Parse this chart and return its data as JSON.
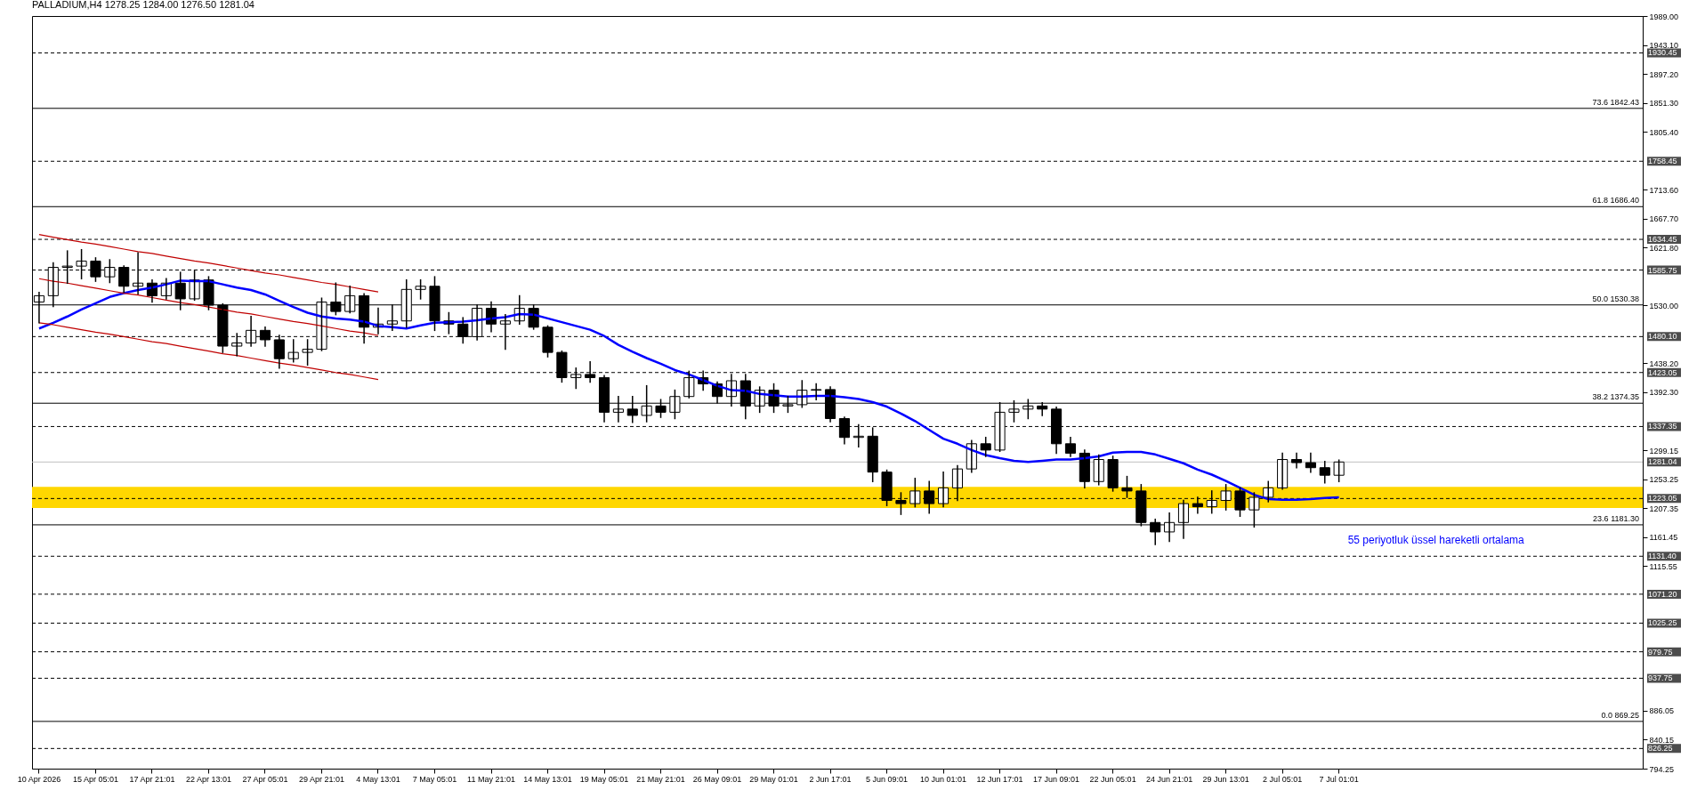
{
  "chart_data": {
    "type": "candlestick",
    "title": "PALLADIUM,H4 1278.25 1284.00 1276.50 1281.04",
    "categories": [
      "10 Apr 2026",
      null,
      null,
      null,
      "15 Apr 05:01",
      null,
      null,
      null,
      "17 Apr 21:01",
      null,
      null,
      null,
      "22 Apr 13:01",
      null,
      null,
      null,
      "27 Apr 05:01",
      null,
      null,
      null,
      "29 Apr 21:01",
      null,
      null,
      null,
      "4 May 13:01",
      null,
      null,
      null,
      "7 May 05:01",
      null,
      null,
      null,
      "11 May 21:01",
      null,
      null,
      null,
      "14 May 13:01",
      null,
      null,
      null,
      "19 May 05:01",
      null,
      null,
      null,
      "21 May 21:01",
      null,
      null,
      null,
      "26 May 09:01",
      null,
      null,
      null,
      "29 May 01:01",
      null,
      null,
      null,
      "2 Jun 17:01",
      null,
      null,
      null,
      "5 Jun 09:01",
      null,
      null,
      null,
      "10 Jun 01:01",
      null,
      null,
      null,
      "12 Jun 17:01",
      null,
      null,
      null,
      "17 Jun 09:01",
      null,
      null,
      null,
      "22 Jun 05:01",
      null,
      null,
      null,
      "24 Jun 21:01",
      null,
      null,
      null,
      "29 Jun 13:01",
      null,
      null,
      null,
      "2 Jul 05:01",
      null,
      null,
      null,
      "7 Jul 01:01",
      null,
      null,
      null,
      null,
      null,
      null,
      null,
      null,
      null,
      null,
      null,
      null,
      null,
      null,
      null,
      null,
      null,
      null,
      null,
      null,
      null
    ],
    "ohlc": [
      [
        1535,
        1550,
        1502,
        1545
      ],
      [
        1545,
        1597,
        1528,
        1590
      ],
      [
        1590,
        1616,
        1565,
        1592
      ],
      [
        1592,
        1618,
        1572,
        1600
      ],
      [
        1600,
        1605,
        1568,
        1575
      ],
      [
        1575,
        1602,
        1566,
        1590
      ],
      [
        1590,
        1592,
        1551,
        1560
      ],
      [
        1560,
        1613,
        1548,
        1565
      ],
      [
        1565,
        1570,
        1535,
        1545
      ],
      [
        1545,
        1572,
        1540,
        1565
      ],
      [
        1565,
        1582,
        1523,
        1540
      ],
      [
        1540,
        1585,
        1538,
        1570
      ],
      [
        1570,
        1575,
        1523,
        1530
      ],
      [
        1530,
        1532,
        1455,
        1465
      ],
      [
        1465,
        1485,
        1450,
        1470
      ],
      [
        1470,
        1512,
        1465,
        1490
      ],
      [
        1490,
        1495,
        1465,
        1475
      ],
      [
        1475,
        1482,
        1430,
        1445
      ],
      [
        1445,
        1475,
        1440,
        1455
      ],
      [
        1455,
        1475,
        1435,
        1460
      ],
      [
        1460,
        1541,
        1458,
        1535
      ],
      [
        1535,
        1565,
        1515,
        1520
      ],
      [
        1520,
        1560,
        1518,
        1545
      ],
      [
        1545,
        1548,
        1470,
        1495
      ],
      [
        1495,
        1525,
        1485,
        1500
      ],
      [
        1500,
        1530,
        1490,
        1505
      ],
      [
        1505,
        1570,
        1495,
        1555
      ],
      [
        1555,
        1570,
        1540,
        1560
      ],
      [
        1560,
        1575,
        1490,
        1505
      ],
      [
        1505,
        1518,
        1485,
        1500
      ],
      [
        1500,
        1510,
        1470,
        1480
      ],
      [
        1480,
        1530,
        1475,
        1525
      ],
      [
        1525,
        1535,
        1488,
        1500
      ],
      [
        1500,
        1515,
        1460,
        1505
      ],
      [
        1505,
        1545,
        1500,
        1525
      ],
      [
        1525,
        1530,
        1492,
        1495
      ],
      [
        1495,
        1497,
        1448,
        1455
      ],
      [
        1455,
        1457,
        1408,
        1415
      ],
      [
        1415,
        1430,
        1398,
        1420
      ],
      [
        1420,
        1440,
        1408,
        1415
      ],
      [
        1415,
        1418,
        1345,
        1360
      ],
      [
        1360,
        1385,
        1345,
        1365
      ],
      [
        1365,
        1385,
        1344,
        1355
      ],
      [
        1355,
        1402,
        1345,
        1370
      ],
      [
        1370,
        1380,
        1352,
        1360
      ],
      [
        1360,
        1395,
        1350,
        1385
      ],
      [
        1385,
        1425,
        1383,
        1415
      ],
      [
        1415,
        1425,
        1395,
        1405
      ],
      [
        1405,
        1408,
        1375,
        1385
      ],
      [
        1385,
        1420,
        1370,
        1410
      ],
      [
        1410,
        1420,
        1350,
        1370
      ],
      [
        1370,
        1400,
        1360,
        1395
      ],
      [
        1395,
        1405,
        1360,
        1370
      ],
      [
        1370,
        1385,
        1360,
        1372
      ],
      [
        1372,
        1410,
        1368,
        1395
      ],
      [
        1395,
        1405,
        1380,
        1396
      ],
      [
        1396,
        1400,
        1345,
        1350
      ],
      [
        1350,
        1352,
        1310,
        1320
      ],
      [
        1320,
        1340,
        1305,
        1322
      ],
      [
        1322,
        1335,
        1250,
        1265
      ],
      [
        1265,
        1268,
        1212,
        1220
      ],
      [
        1220,
        1232,
        1198,
        1215
      ],
      [
        1215,
        1255,
        1210,
        1235
      ],
      [
        1235,
        1250,
        1200,
        1215
      ],
      [
        1215,
        1265,
        1210,
        1240
      ],
      [
        1240,
        1275,
        1220,
        1270
      ],
      [
        1270,
        1315,
        1265,
        1310
      ],
      [
        1310,
        1320,
        1290,
        1300
      ],
      [
        1300,
        1375,
        1298,
        1360
      ],
      [
        1360,
        1378,
        1345,
        1365
      ],
      [
        1365,
        1380,
        1350,
        1370
      ],
      [
        1370,
        1375,
        1355,
        1365
      ],
      [
        1365,
        1368,
        1295,
        1310
      ],
      [
        1310,
        1320,
        1290,
        1295
      ],
      [
        1295,
        1300,
        1240,
        1250
      ],
      [
        1250,
        1292,
        1245,
        1285
      ],
      [
        1285,
        1290,
        1235,
        1240
      ],
      [
        1240,
        1258,
        1225,
        1235
      ],
      [
        1235,
        1245,
        1180,
        1185
      ],
      [
        1185,
        1190,
        1150,
        1170
      ],
      [
        1170,
        1200,
        1155,
        1185
      ],
      [
        1185,
        1220,
        1160,
        1215
      ],
      [
        1215,
        1225,
        1200,
        1210
      ],
      [
        1210,
        1235,
        1200,
        1220
      ],
      [
        1220,
        1245,
        1205,
        1235
      ],
      [
        1235,
        1240,
        1195,
        1205
      ],
      [
        1205,
        1232,
        1178,
        1225
      ],
      [
        1225,
        1250,
        1218,
        1240
      ],
      [
        1240,
        1295,
        1238,
        1285
      ],
      [
        1285,
        1295,
        1272,
        1280
      ],
      [
        1280,
        1295,
        1265,
        1272
      ],
      [
        1272,
        1282,
        1248,
        1260
      ],
      [
        1260,
        1284,
        1250,
        1281.04
      ],
      null,
      null,
      null,
      null,
      null,
      null,
      null,
      null,
      null,
      null,
      null,
      null,
      null,
      null,
      null,
      null,
      null,
      null,
      null,
      null,
      null
    ],
    "series": [
      {
        "name": "55 periyotluk üssel hareketli ortalama",
        "type": "line",
        "color": "#0000ff",
        "values": [
          1493,
          1502,
          1512,
          1523,
          1533,
          1543,
          1549,
          1554,
          1558,
          1563,
          1569,
          1568,
          1568,
          1563,
          1558,
          1554,
          1547,
          1537,
          1527,
          1518,
          1512,
          1509,
          1507,
          1504,
          1497,
          1495,
          1493,
          1498,
          1502,
          1503,
          1504,
          1506,
          1509,
          1511,
          1516,
          1515,
          1509,
          1503,
          1497,
          1491,
          1481,
          1467,
          1456,
          1446,
          1437,
          1427,
          1420,
          1411,
          1402,
          1395,
          1394,
          1389,
          1387,
          1385,
          1385,
          1386,
          1386,
          1384,
          1381,
          1376,
          1369,
          1358,
          1346,
          1332,
          1318,
          1310,
          1300,
          1292,
          1287,
          1283,
          1281,
          1283,
          1285,
          1285,
          1287,
          1290,
          1296,
          1297,
          1297,
          1293,
          1286,
          1279,
          1269,
          1261,
          1251,
          1240,
          1229,
          1222,
          1221,
          1221,
          1222,
          1224,
          1225,
          null,
          null,
          null,
          null,
          null,
          null,
          null,
          null,
          null,
          null,
          null,
          null,
          null,
          null,
          null,
          null,
          null,
          null,
          null,
          null,
          null
        ]
      },
      {
        "type": "line",
        "color": "#c00000",
        "values": [
          1642,
          1638,
          1634,
          1630,
          1627,
          1623,
          1619,
          1615,
          1612,
          1608,
          1604,
          1600,
          1597,
          1593,
          1589,
          1585,
          1581,
          1578,
          1574,
          1570,
          1566,
          1563,
          1559,
          1555,
          1551,
          null,
          null,
          null,
          null,
          null,
          null,
          null,
          null,
          null,
          null,
          null,
          null,
          null,
          null,
          null,
          null,
          null,
          null,
          null,
          null,
          null,
          null,
          null,
          null,
          null,
          null,
          null,
          null,
          null,
          null,
          null,
          null,
          null,
          null,
          null,
          null,
          null,
          null,
          null,
          null,
          null,
          null,
          null,
          null,
          null,
          null,
          null,
          null,
          null,
          null,
          null,
          null,
          null,
          null,
          null,
          null,
          null,
          null,
          null,
          null,
          null,
          null,
          null,
          null,
          null,
          null,
          null,
          null,
          null,
          null,
          null,
          null,
          null,
          null,
          null,
          null,
          null,
          null,
          null,
          null,
          null,
          null,
          null,
          null,
          null,
          null,
          null,
          null,
          null
        ]
      },
      {
        "type": "line",
        "color": "#c00000",
        "values": [
          1572,
          1568,
          1565,
          1561,
          1557,
          1553,
          1549,
          1546,
          1542,
          1538,
          1534,
          1531,
          1527,
          1523,
          1519,
          1516,
          1512,
          1508,
          1504,
          1501,
          1497,
          1493,
          1489,
          1486,
          1482,
          null,
          null,
          null,
          null,
          null,
          null,
          null,
          null,
          null,
          null,
          null,
          null,
          null,
          null,
          null,
          null,
          null,
          null,
          null,
          null,
          null,
          null,
          null,
          null,
          null,
          null,
          null,
          null,
          null,
          null,
          null,
          null,
          null,
          null,
          null,
          null,
          null,
          null,
          null,
          null,
          null,
          null,
          null,
          null,
          null,
          null,
          null,
          null,
          null,
          null,
          null,
          null,
          null,
          null,
          null,
          null,
          null,
          null,
          null,
          null,
          null,
          null,
          null,
          null,
          null,
          null,
          null,
          null,
          null,
          null,
          null,
          null,
          null,
          null,
          null,
          null,
          null,
          null,
          null,
          null,
          null,
          null,
          null,
          null,
          null,
          null,
          null,
          null,
          null
        ]
      },
      {
        "type": "line",
        "color": "#c00000",
        "values": [
          1502,
          1499,
          1495,
          1491,
          1487,
          1484,
          1480,
          1476,
          1472,
          1469,
          1465,
          1461,
          1457,
          1453,
          1450,
          1446,
          1442,
          1438,
          1435,
          1431,
          1427,
          1423,
          1420,
          1416,
          1412,
          null,
          null,
          null,
          null,
          null,
          null,
          null,
          null,
          null,
          null,
          null,
          null,
          null,
          null,
          null,
          null,
          null,
          null,
          null,
          null,
          null,
          null,
          null,
          null,
          null,
          null,
          null,
          null,
          null,
          null,
          null,
          null,
          null,
          null,
          null,
          null,
          null,
          null,
          null,
          null,
          null,
          null,
          null,
          null,
          null,
          null,
          null,
          null,
          null,
          null,
          null,
          null,
          null,
          null,
          null,
          null,
          null,
          null,
          null,
          null,
          null,
          null,
          null,
          null,
          null,
          null,
          null,
          null,
          null,
          null,
          null,
          null,
          null,
          null,
          null,
          null,
          null,
          null,
          null,
          null,
          null,
          null,
          null,
          null,
          null,
          null,
          null,
          null,
          null
        ]
      }
    ],
    "ylim": [
      794.25,
      1989
    ],
    "yticks": [
      794.25,
      840.15,
      886.05,
      1115.55,
      1161.45,
      1207.35,
      1253.25,
      1299.15,
      {
        "value": 1392.3,
        "label": "1392.30"
      },
      {
        "value": 1438.2,
        "label": "1438.20"
      },
      {
        "value": 1530,
        "label": "1530.00"
      },
      {
        "value": 1621.8,
        "label": "1621.80"
      },
      {
        "value": 1667.7,
        "label": "1667.70"
      },
      {
        "value": 1713.6,
        "label": "1713.60"
      },
      {
        "value": 1805.4,
        "label": "1805.40"
      },
      {
        "value": 1851.3,
        "label": "1851.30"
      },
      {
        "value": 1897.2,
        "label": "1897.20"
      },
      {
        "value": 1943.1,
        "label": "1943.10"
      },
      {
        "value": 1989,
        "label": "1989.00"
      }
    ],
    "ref_lines": [
      {
        "axis": "y",
        "value": 1930.45,
        "label": "1930.45",
        "color": "#000000",
        "line_style": "dashed"
      },
      {
        "axis": "y",
        "value": 1842.43,
        "label": "73.6 1842.43",
        "color": "#000000",
        "line_style": "solid"
      },
      {
        "axis": "y",
        "value": 1758.45,
        "label": "1758.45",
        "color": "#000000",
        "line_style": "dashed"
      },
      {
        "axis": "y",
        "value": 1686.4,
        "label": "61.8 1686.40",
        "color": "#000000",
        "line_style": "solid"
      },
      {
        "axis": "y",
        "value": 1634.45,
        "label": "1634.45",
        "color": "#000000",
        "line_style": "dashed"
      },
      {
        "axis": "y",
        "value": 1585.75,
        "label": "1585.75",
        "color": "#000000",
        "line_style": "dashed"
      },
      {
        "axis": "y",
        "value": 1530.38,
        "label": "50.0 1530.38",
        "color": "#000000",
        "line_style": "solid"
      },
      {
        "axis": "y",
        "value": 1480.1,
        "label": "1480.10",
        "color": "#000000",
        "line_style": "dashed"
      },
      {
        "axis": "y",
        "value": 1423.05,
        "label": "1423.05",
        "color": "#000000",
        "line_style": "dashed"
      },
      {
        "axis": "y",
        "value": 1374.35,
        "label": "38.2 1374.35",
        "color": "#000000",
        "line_style": "solid"
      },
      {
        "axis": "y",
        "value": 1337.35,
        "label": "1337.35",
        "color": "#000000",
        "line_style": "dashed"
      },
      {
        "axis": "y",
        "value": 1281.04,
        "label": "1281.04",
        "color": "#c0c0c0",
        "line_style": "solid"
      },
      {
        "axis": "y",
        "value": 1223.05,
        "label": "1223.05",
        "color": "#000000",
        "line_style": "dashed"
      },
      {
        "axis": "y",
        "value": 1181.3,
        "label": "23.6 1181.30",
        "color": "#000000",
        "line_style": "solid"
      },
      {
        "axis": "y",
        "value": 1131.4,
        "label": "1131.40",
        "color": "#000000",
        "line_style": "dashed"
      },
      {
        "axis": "y",
        "value": 1071.2,
        "label": "1071.20",
        "color": "#000000",
        "line_style": "dashed"
      },
      {
        "axis": "y",
        "value": 1025.25,
        "label": "1025.25",
        "color": "#000000",
        "line_style": "dashed"
      },
      {
        "axis": "y",
        "value": 979.75,
        "label": "979.75",
        "color": "#000000",
        "line_style": "dashed"
      },
      {
        "axis": "y",
        "value": 937.75,
        "label": "937.75",
        "color": "#000000",
        "line_style": "dashed"
      },
      {
        "axis": "y",
        "value": 869.25,
        "label": "0.0 869.25",
        "color": "#000000",
        "line_style": "solid"
      },
      {
        "axis": "y",
        "value": 826.25,
        "label": "826.25",
        "color": "#000000",
        "line_style": "dashed"
      }
    ],
    "bands": [
      {
        "axis": "y",
        "from": 1208,
        "to": 1241.5,
        "color": "#ffd700"
      }
    ]
  }
}
